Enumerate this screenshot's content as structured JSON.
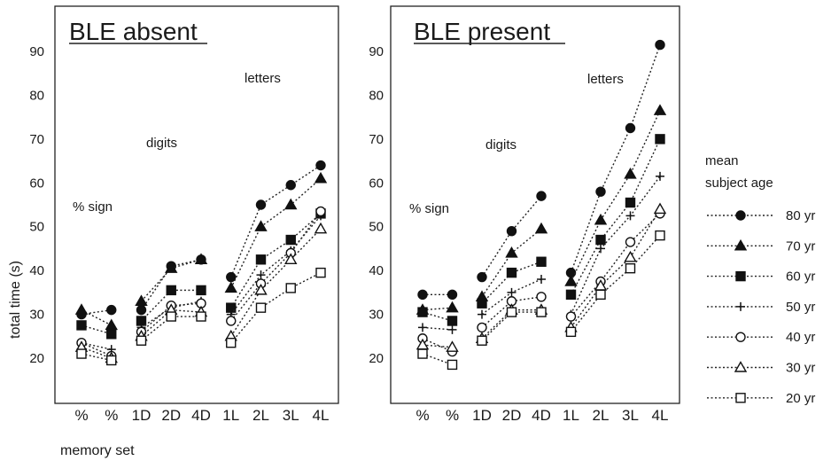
{
  "chart_data": [
    {
      "type": "line",
      "title": "BLE absent",
      "ylabel": "total  time  (s)",
      "xlabel": "memory set",
      "ylim": [
        15,
        98
      ],
      "yticks": [
        20,
        30,
        40,
        50,
        60,
        70,
        80,
        90
      ],
      "categories": [
        "%",
        "%",
        "1D",
        "2D",
        "4D",
        "1L",
        "2L",
        "3L",
        "4L"
      ],
      "group_labels": [
        "% sign",
        "digits",
        "letters"
      ],
      "series": [
        {
          "name": "80 yr",
          "marker": "circle-filled",
          "segments": [
            [
              0,
              [
                30,
                31
              ]
            ],
            [
              2,
              [
                31,
                41,
                42.5
              ]
            ],
            [
              5,
              [
                38.5,
                55,
                59.5,
                64
              ]
            ]
          ]
        },
        {
          "name": "70 yr",
          "marker": "triangle-filled",
          "segments": [
            [
              0,
              [
                31,
                27.5
              ]
            ],
            [
              2,
              [
                33,
                40.5,
                42.5
              ]
            ],
            [
              5,
              [
                36,
                50,
                55,
                61
              ]
            ]
          ]
        },
        {
          "name": "60 yr",
          "marker": "square-filled",
          "segments": [
            [
              0,
              [
                27.5,
                25.5
              ]
            ],
            [
              2,
              [
                28.5,
                35.5,
                35.5
              ]
            ],
            [
              5,
              [
                31.5,
                42.5,
                47,
                53
              ]
            ]
          ]
        },
        {
          "name": "50 yr",
          "marker": "plus",
          "segments": [
            [
              0,
              [
                23.5,
                22
              ]
            ],
            [
              2,
              [
                27,
                31.5,
                33
              ]
            ],
            [
              5,
              [
                30,
                39,
                44.5,
                52.5
              ]
            ]
          ]
        },
        {
          "name": "40 yr",
          "marker": "circle-open",
          "segments": [
            [
              0,
              [
                23.5,
                20.5
              ]
            ],
            [
              2,
              [
                26,
                32,
                32.5
              ]
            ],
            [
              5,
              [
                28.5,
                37,
                44,
                53.5
              ]
            ]
          ]
        },
        {
          "name": "30 yr",
          "marker": "triangle-open",
          "segments": [
            [
              0,
              [
                22.5,
                20
              ]
            ],
            [
              2,
              [
                25,
                31,
                30.5
              ]
            ],
            [
              5,
              [
                25,
                35.5,
                42.5,
                49.5
              ]
            ]
          ]
        },
        {
          "name": "20 yr",
          "marker": "square-open",
          "segments": [
            [
              0,
              [
                21,
                19.5
              ]
            ],
            [
              2,
              [
                24,
                29.5,
                29.5
              ]
            ],
            [
              5,
              [
                23.5,
                31.5,
                36,
                39.5
              ]
            ]
          ]
        }
      ]
    },
    {
      "type": "line",
      "title": "BLE present",
      "ylabel": "",
      "xlabel": "",
      "ylim": [
        15,
        98
      ],
      "yticks": [
        20,
        30,
        40,
        50,
        60,
        70,
        80,
        90
      ],
      "categories": [
        "%",
        "%",
        "1D",
        "2D",
        "4D",
        "1L",
        "2L",
        "3L",
        "4L"
      ],
      "group_labels": [
        "% sign",
        "digits",
        "letters"
      ],
      "series": [
        {
          "name": "80 yr",
          "marker": "circle-filled",
          "segments": [
            [
              0,
              [
                34.5,
                34.5
              ]
            ],
            [
              2,
              [
                38.5,
                49,
                57
              ]
            ],
            [
              5,
              [
                39.5,
                58,
                72.5,
                91.5
              ]
            ]
          ]
        },
        {
          "name": "70 yr",
          "marker": "triangle-filled",
          "segments": [
            [
              0,
              [
                31,
                31.5
              ]
            ],
            [
              2,
              [
                34,
                44,
                49.5
              ]
            ],
            [
              5,
              [
                37.5,
                51.5,
                62,
                76.5
              ]
            ]
          ]
        },
        {
          "name": "60 yr",
          "marker": "square-filled",
          "segments": [
            [
              0,
              [
                30.5,
                28.5
              ]
            ],
            [
              2,
              [
                32.5,
                39.5,
                42
              ]
            ],
            [
              5,
              [
                34.5,
                47,
                55.5,
                70
              ]
            ]
          ]
        },
        {
          "name": "50 yr",
          "marker": "plus",
          "segments": [
            [
              0,
              [
                27,
                26.5
              ]
            ],
            [
              2,
              [
                30,
                35,
                38
              ]
            ],
            [
              5,
              [
                30,
                45,
                52.5,
                61.5
              ]
            ]
          ]
        },
        {
          "name": "40 yr",
          "marker": "circle-open",
          "segments": [
            [
              0,
              [
                24.5,
                21.5
              ]
            ],
            [
              2,
              [
                27,
                33,
                34
              ]
            ],
            [
              5,
              [
                29.5,
                37.5,
                46.5,
                53
              ]
            ]
          ]
        },
        {
          "name": "30 yr",
          "marker": "triangle-open",
          "segments": [
            [
              0,
              [
                23,
                22.5
              ]
            ],
            [
              2,
              [
                24.5,
                31,
                31
              ]
            ],
            [
              5,
              [
                27,
                36.5,
                43,
                54
              ]
            ]
          ]
        },
        {
          "name": "20 yr",
          "marker": "square-open",
          "segments": [
            [
              0,
              [
                21,
                18.5
              ]
            ],
            [
              2,
              [
                24,
                30.5,
                30.5
              ]
            ],
            [
              5,
              [
                26,
                34.5,
                40.5,
                48
              ]
            ]
          ]
        }
      ]
    }
  ],
  "legend": {
    "title_line1": "mean",
    "title_line2": "subject age",
    "position": "right",
    "items": [
      {
        "label": "80 yr",
        "marker": "circle-filled"
      },
      {
        "label": "70 yr",
        "marker": "triangle-filled"
      },
      {
        "label": "60 yr",
        "marker": "square-filled"
      },
      {
        "label": "50 yr",
        "marker": "plus"
      },
      {
        "label": "40 yr",
        "marker": "circle-open"
      },
      {
        "label": "30 yr",
        "marker": "triangle-open"
      },
      {
        "label": "20 yr",
        "marker": "square-open"
      }
    ]
  }
}
